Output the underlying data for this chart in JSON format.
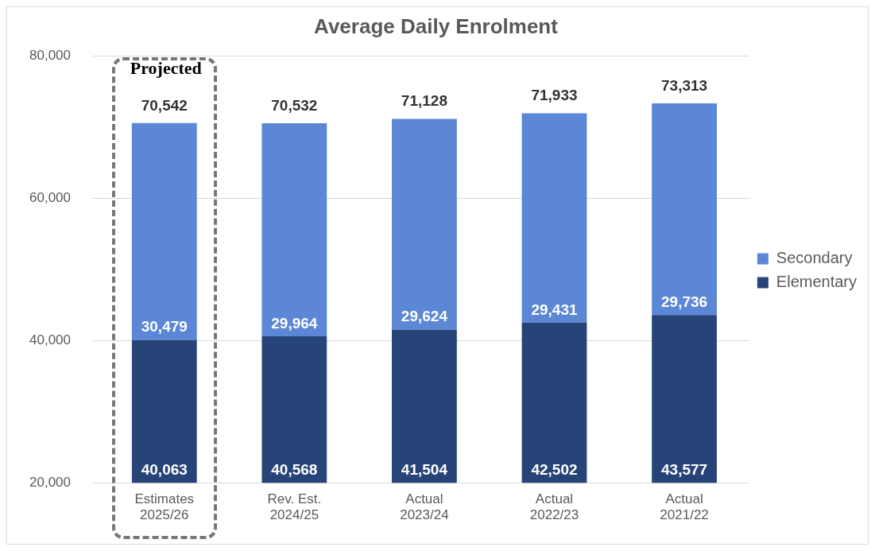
{
  "chart_data": {
    "type": "bar",
    "title": "Average Daily Enrolment",
    "stacked": true,
    "categories": [
      "Estimates\n2025/26",
      "Rev. Est.\n2024/25",
      "Actual\n2023/24",
      "Actual\n2022/23",
      "Actual\n2021/22"
    ],
    "series": [
      {
        "name": "Elementary",
        "color": "#264478",
        "values": [
          40063,
          40568,
          41504,
          42502,
          43577
        ],
        "value_labels": [
          "40,063",
          "40,568",
          "41,504",
          "42,502",
          "43,577"
        ]
      },
      {
        "name": "Secondary",
        "color": "#5b87d6",
        "values": [
          30479,
          29964,
          29624,
          29431,
          29736
        ],
        "value_labels": [
          "30,479",
          "29,964",
          "29,624",
          "29,431",
          "29,736"
        ]
      }
    ],
    "totals": [
      "70,542",
      "70,532",
      "71,128",
      "71,933",
      "73,313"
    ],
    "ylim": [
      20000,
      80000
    ],
    "yticks": [
      {
        "value": 20000,
        "label": "20,000"
      },
      {
        "value": 40000,
        "label": "40,000"
      },
      {
        "value": 60000,
        "label": "60,000"
      },
      {
        "value": 80000,
        "label": "80,000"
      }
    ],
    "grid": "y",
    "legend": "right",
    "annotations": [
      "Projected"
    ]
  }
}
